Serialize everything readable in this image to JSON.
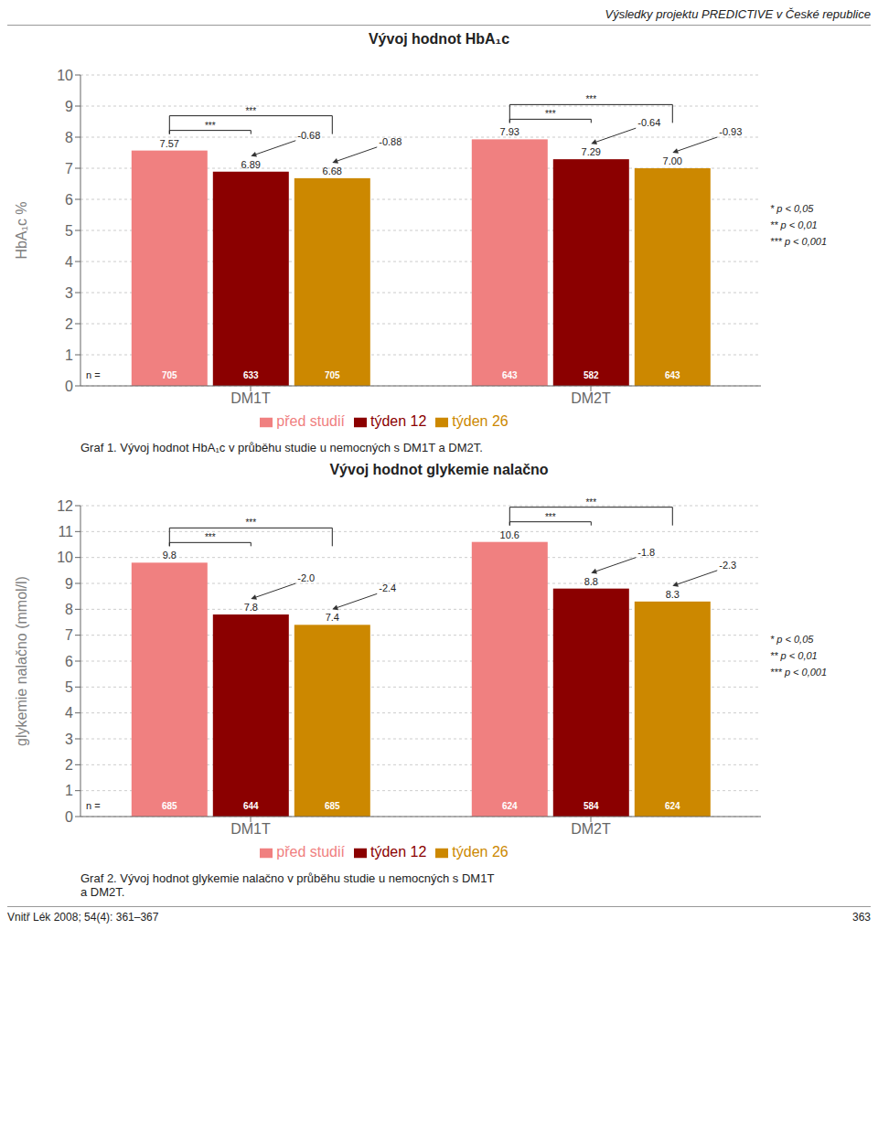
{
  "chart_data": [
    {
      "type": "bar",
      "title": "Vývoj hodnot HbA₁c",
      "y_label": "HbA₁c %",
      "categories": [
        "DM1T",
        "DM2T"
      ],
      "series": [
        {
          "name": "před studií",
          "color": "#F08080",
          "values": [
            7.57,
            7.93
          ],
          "n_labels": [
            705,
            643
          ]
        },
        {
          "name": "týden 12",
          "color": "#8B0000",
          "values": [
            6.89,
            7.29
          ],
          "n_labels": [
            633,
            582
          ],
          "deltas": [
            -0.68,
            -0.64
          ]
        },
        {
          "name": "týden 26",
          "color": "#CC8800",
          "values": [
            6.68,
            7.0
          ],
          "value_labels": [
            "6.68",
            "7.00"
          ],
          "n_labels": [
            705,
            643
          ],
          "deltas": [
            -0.88,
            -0.93
          ]
        }
      ],
      "brackets": [
        {
          "series": [
            "před studií",
            "týden 12"
          ],
          "label": "***"
        },
        {
          "series": [
            "před studií",
            "týden 26"
          ],
          "label": "***"
        }
      ],
      "ylim": [
        0,
        10
      ],
      "yticks": [
        0,
        1,
        2,
        3,
        4,
        5,
        6,
        7,
        8,
        9,
        10
      ],
      "grid": true,
      "legend": "bottom",
      "data_labels": true,
      "n_label": "n =",
      "significance_key": [
        "* p < 0,05",
        "** p < 0,01",
        "*** p < 0,001"
      ],
      "caption": "Graf 1. Vývoj hodnot HbA₁c v průběhu studie u nemocných s DM1T a DM2T."
    },
    {
      "type": "bar",
      "title": "Vývoj hodnot glykemie nalačno",
      "y_label": "glykemie nalačno (mmol/l)",
      "categories": [
        "DM1T",
        "DM2T"
      ],
      "series": [
        {
          "name": "před studií",
          "color": "#F08080",
          "values": [
            9.8,
            10.6
          ],
          "n_labels": [
            685,
            624
          ]
        },
        {
          "name": "týden 12",
          "color": "#8B0000",
          "values": [
            7.8,
            8.8
          ],
          "n_labels": [
            644,
            584
          ],
          "deltas": [
            -2.0,
            -1.8
          ],
          "delta_labels": [
            "-2.0",
            "-1.8"
          ]
        },
        {
          "name": "týden 26",
          "color": "#CC8800",
          "values": [
            7.4,
            8.3
          ],
          "n_labels": [
            685,
            624
          ],
          "deltas": [
            -2.4,
            -2.3
          ]
        }
      ],
      "brackets": [
        {
          "series": [
            "před studií",
            "týden 12"
          ],
          "label": "***"
        },
        {
          "series": [
            "před studií",
            "týden 26"
          ],
          "label": "***"
        }
      ],
      "ylim": [
        0,
        12
      ],
      "yticks": [
        0,
        1,
        2,
        3,
        4,
        5,
        6,
        7,
        8,
        9,
        10,
        11,
        12
      ],
      "grid": true,
      "legend": "bottom",
      "data_labels": true,
      "n_label": "n =",
      "significance_key": [
        "* p < 0,05",
        "** p < 0,01",
        "*** p < 0,001"
      ],
      "caption": "Graf 2. Vývoj hodnot glykemie nalačno v průběhu studie u nemocných s DM1T\na DM2T."
    }
  ],
  "page": {
    "header": "Výsledky projektu PREDICTIVE v České republice",
    "footer_left": "Vnitř Lék 2008; 54(4): 361–367",
    "footer_right": "363"
  }
}
